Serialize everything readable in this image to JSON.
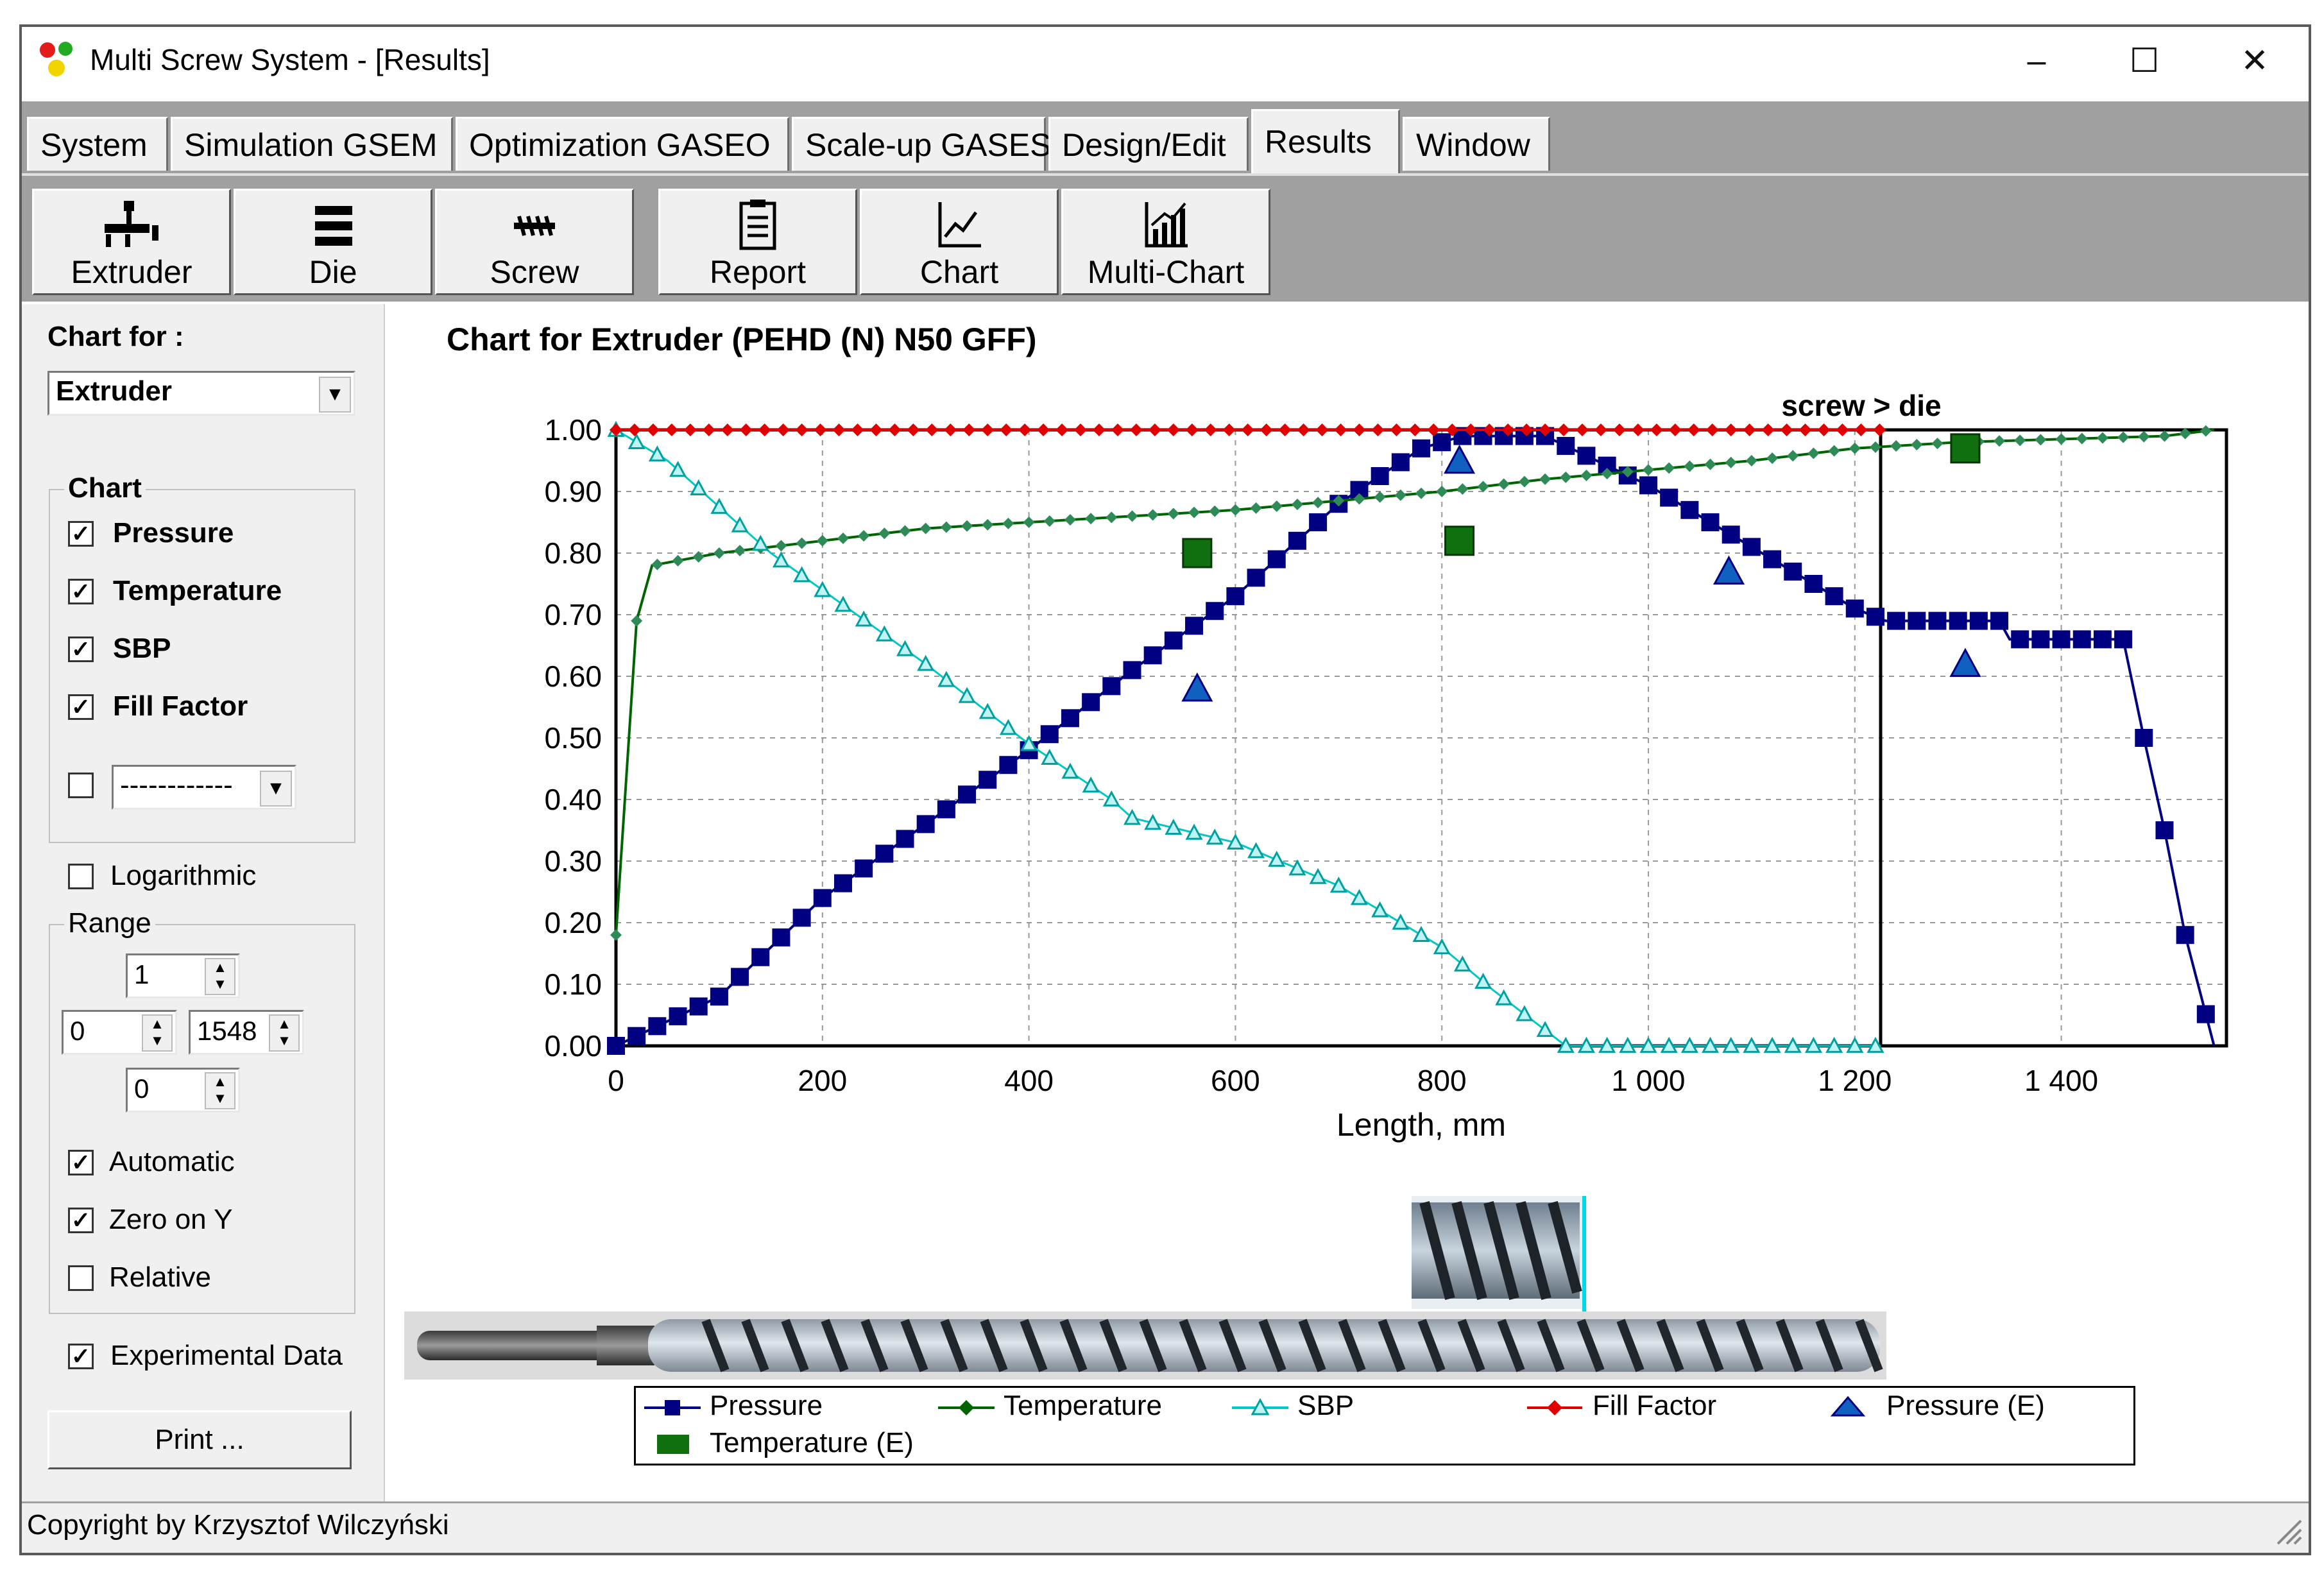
{
  "window": {
    "title": "Multi Screw System - [Results]"
  },
  "tabs": [
    "System",
    "Simulation GSEM",
    "Optimization GASEO",
    "Scale-up GASES",
    "Design/Edit",
    "Results",
    "Window"
  ],
  "active_tab": "Results",
  "toolbar": [
    "Extruder",
    "Die",
    "Screw",
    "Report",
    "Chart",
    "Multi-Chart"
  ],
  "left_panel": {
    "chart_for_label": "Chart for :",
    "chart_for_value": "Extruder",
    "chart_group_label": "Chart",
    "series_checks": [
      {
        "label": "Pressure",
        "checked": true
      },
      {
        "label": "Temperature",
        "checked": true
      },
      {
        "label": "SBP",
        "checked": true
      },
      {
        "label": "Fill Factor",
        "checked": true
      }
    ],
    "extra_combo_value": "------------",
    "logarithmic_label": "Logarithmic",
    "range_label": "Range",
    "range_values": {
      "top": "1",
      "left": "0",
      "right": "1548",
      "bottom": "0"
    },
    "options": [
      {
        "label": "Automatic",
        "checked": true
      },
      {
        "label": "Zero on Y",
        "checked": true
      },
      {
        "label": "Relative",
        "checked": false
      }
    ],
    "experimental_label": "Experimental Data",
    "print_label": "Print ..."
  },
  "status": "Copyright by Krzysztof Wilczyński",
  "chart_data": {
    "type": "line",
    "title": "Chart for Extruder (PEHD (N) N50 GFF)",
    "annotation": "screw > die",
    "boundary_x": 1225,
    "xlabel": "Length, mm",
    "xlim": [
      0,
      1560
    ],
    "ylim": [
      0,
      1
    ],
    "x_ticks": [
      "0",
      "200",
      "400",
      "600",
      "800",
      "1 000",
      "1 200",
      "1 400"
    ],
    "y_ticks": [
      "0.00",
      "0.10",
      "0.20",
      "0.30",
      "0.40",
      "0.50",
      "0.60",
      "0.70",
      "0.80",
      "0.90",
      "1.00"
    ],
    "grid": true,
    "series": [
      {
        "name": "Pressure",
        "color": "#000080",
        "marker": "square",
        "points": [
          [
            0,
            0
          ],
          [
            100,
            0.08
          ],
          [
            200,
            0.24
          ],
          [
            300,
            0.36
          ],
          [
            400,
            0.48
          ],
          [
            500,
            0.61
          ],
          [
            600,
            0.73
          ],
          [
            700,
            0.88
          ],
          [
            780,
            0.97
          ],
          [
            820,
            0.99
          ],
          [
            900,
            0.99
          ],
          [
            950,
            0.95
          ],
          [
            1000,
            0.91
          ],
          [
            1100,
            0.81
          ],
          [
            1200,
            0.71
          ],
          [
            1230,
            0.69
          ],
          [
            1340,
            0.69
          ],
          [
            1350,
            0.66
          ],
          [
            1460,
            0.66
          ],
          [
            1480,
            0.5
          ],
          [
            1500,
            0.35
          ],
          [
            1520,
            0.18
          ],
          [
            1548,
            0
          ]
        ]
      },
      {
        "name": "Temperature",
        "color": "#006400",
        "marker": "diamond",
        "points": [
          [
            0,
            0.18
          ],
          [
            20,
            0.69
          ],
          [
            35,
            0.78
          ],
          [
            100,
            0.8
          ],
          [
            200,
            0.82
          ],
          [
            300,
            0.84
          ],
          [
            400,
            0.85
          ],
          [
            500,
            0.86
          ],
          [
            600,
            0.87
          ],
          [
            700,
            0.885
          ],
          [
            800,
            0.9
          ],
          [
            900,
            0.92
          ],
          [
            1000,
            0.935
          ],
          [
            1100,
            0.95
          ],
          [
            1200,
            0.97
          ],
          [
            1300,
            0.98
          ],
          [
            1400,
            0.985
          ],
          [
            1500,
            0.99
          ],
          [
            1548,
            1.0
          ]
        ]
      },
      {
        "name": "SBP",
        "color": "#00c8c8",
        "marker": "triangle",
        "points": [
          [
            0,
            1.0
          ],
          [
            50,
            0.95
          ],
          [
            150,
            0.8
          ],
          [
            200,
            0.74
          ],
          [
            300,
            0.62
          ],
          [
            400,
            0.49
          ],
          [
            480,
            0.4
          ],
          [
            500,
            0.37
          ],
          [
            600,
            0.33
          ],
          [
            700,
            0.26
          ],
          [
            800,
            0.16
          ],
          [
            850,
            0.09
          ],
          [
            920,
            0
          ],
          [
            1225,
            0
          ]
        ]
      },
      {
        "name": "Fill Factor",
        "color": "#e00000",
        "marker": "diamond",
        "points": [
          [
            0,
            1.0
          ],
          [
            1225,
            1.0
          ]
        ]
      }
    ],
    "experimental": [
      {
        "name": "Pressure (E)",
        "color": "#1060c0",
        "marker": "triangle",
        "points": [
          [
            563,
            0.58
          ],
          [
            817,
            0.95
          ],
          [
            1078,
            0.77
          ],
          [
            1307,
            0.62
          ]
        ]
      },
      {
        "name": "Temperature (E)",
        "color": "#107010",
        "marker": "square",
        "points": [
          [
            563,
            0.8
          ],
          [
            817,
            0.82
          ],
          [
            1307,
            0.97
          ]
        ]
      }
    ]
  },
  "legend": [
    "Pressure",
    "Temperature",
    "SBP",
    "Fill Factor",
    "Pressure (E)",
    "Temperature (E)"
  ]
}
